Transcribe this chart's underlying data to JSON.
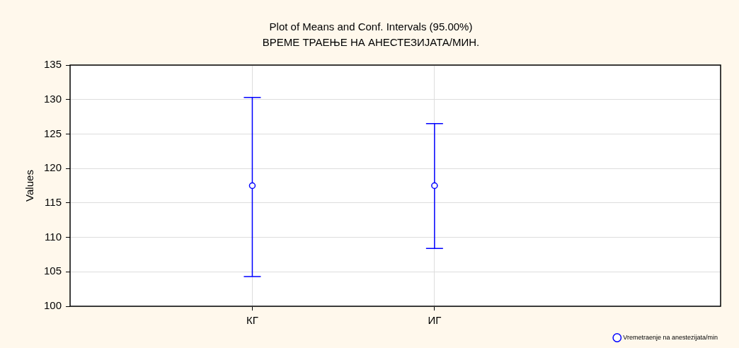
{
  "chart_data": {
    "type": "scatter",
    "title": "Plot of Means and Conf. Intervals (95.00%)",
    "subtitle": "ВРЕМЕ ТРАЕЊЕ НА АНЕСТЕЗИЈАТА/МИН.",
    "ylabel": "Values",
    "categories": [
      "КГ",
      "ИГ"
    ],
    "series": [
      {
        "name": "Vremetraenje na anestezijata/min",
        "color": "#0000ff",
        "values": [
          117.5,
          117.5
        ],
        "errors": [
          [
            104.3,
            130.3
          ],
          [
            108.4,
            126.5
          ]
        ]
      }
    ],
    "ylim": [
      100,
      135
    ],
    "yticks": [
      100,
      105,
      110,
      115,
      120,
      125,
      130,
      135
    ],
    "grid": true,
    "legend": "bottom right",
    "marker": "circle"
  }
}
